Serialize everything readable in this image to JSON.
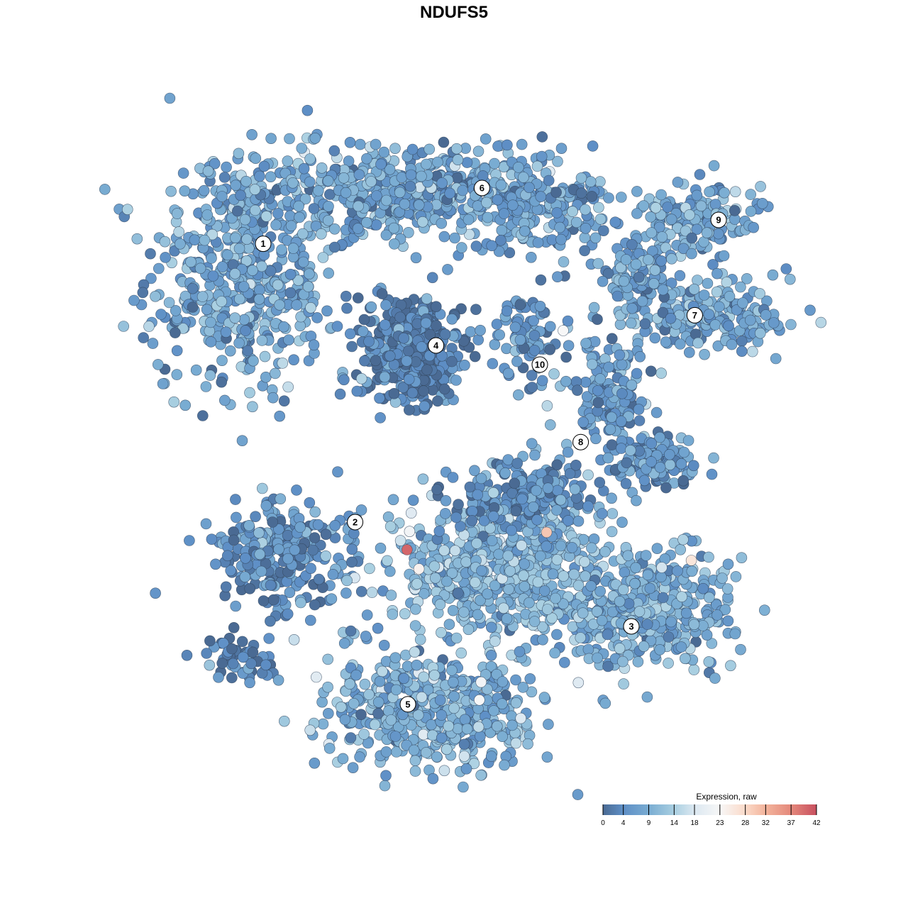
{
  "chart_data": {
    "type": "scatter",
    "title": "NDUFS5",
    "xlabel": "",
    "ylabel": "",
    "axes_visible": false,
    "grid": false,
    "note_points": "dense embedding scatter; cells summarized by cluster blobs (center, spread, count, mean expression)",
    "xlim": [
      -40,
      40
    ],
    "ylim": [
      -40,
      40
    ],
    "clusters": [
      {
        "label": "1",
        "x": -24.5,
        "y": 24.7
      },
      {
        "label": "6",
        "x": 1.2,
        "y": 31.25
      },
      {
        "label": "9",
        "x": 29,
        "y": 27.5
      },
      {
        "label": "7",
        "x": 26.2,
        "y": 16.3
      },
      {
        "label": "4",
        "x": -4.2,
        "y": 12.75
      },
      {
        "label": "10",
        "x": 8,
        "y": 10.5
      },
      {
        "label": "8",
        "x": 12.8,
        "y": 1.4
      },
      {
        "label": "2",
        "x": -13.7,
        "y": -8
      },
      {
        "label": "3",
        "x": 18.75,
        "y": -20.25
      },
      {
        "label": "5",
        "x": -7.5,
        "y": -29.4
      }
    ],
    "blobs": [
      {
        "x": -27,
        "y": 20.8,
        "sx": 8,
        "sy": 10,
        "n": 500,
        "expr": 8
      },
      {
        "x": -8.75,
        "y": 30.8,
        "sx": 13,
        "sy": 4,
        "n": 500,
        "expr": 8
      },
      {
        "x": 7.9,
        "y": 29.2,
        "sx": 6,
        "sy": 4,
        "n": 200,
        "expr": 7
      },
      {
        "x": -7,
        "y": 12.5,
        "sx": 4.5,
        "sy": 4.5,
        "n": 400,
        "expr": 2
      },
      {
        "x": 27,
        "y": 27.5,
        "sx": 5,
        "sy": 3,
        "n": 150,
        "expr": 8
      },
      {
        "x": 28,
        "y": 15.8,
        "sx": 7,
        "sy": 3,
        "n": 200,
        "expr": 8
      },
      {
        "x": 19.6,
        "y": 20.8,
        "sx": 3,
        "sy": 3,
        "n": 100,
        "expr": 7
      },
      {
        "x": 6.25,
        "y": 14.2,
        "sx": 3,
        "sy": 3.5,
        "n": 80,
        "expr": 5
      },
      {
        "x": 16.25,
        "y": 6.7,
        "sx": 3,
        "sy": 5,
        "n": 150,
        "expr": 6
      },
      {
        "x": 22,
        "y": -0.8,
        "sx": 3.5,
        "sy": 2,
        "n": 130,
        "expr": 5
      },
      {
        "x": -22,
        "y": -11.7,
        "sx": 6,
        "sy": 4.5,
        "n": 250,
        "expr": 4
      },
      {
        "x": -27,
        "y": -24,
        "sx": 3,
        "sy": 2,
        "n": 50,
        "expr": 3
      },
      {
        "x": 3,
        "y": -13.3,
        "sx": 9,
        "sy": 6,
        "n": 600,
        "expr": 11
      },
      {
        "x": 6.25,
        "y": -5,
        "sx": 6,
        "sy": 3,
        "n": 200,
        "expr": 5
      },
      {
        "x": 19.6,
        "y": -18.3,
        "sx": 8,
        "sy": 5,
        "n": 400,
        "expr": 9
      },
      {
        "x": -4.6,
        "y": -30,
        "sx": 9,
        "sy": 5,
        "n": 500,
        "expr": 9
      }
    ],
    "high_points": [
      {
        "x": -7.6,
        "y": -11.25,
        "expr": 40
      },
      {
        "x": 8.8,
        "y": -9.2,
        "expr": 30
      },
      {
        "x": 25.8,
        "y": -12.5,
        "expr": 26
      },
      {
        "x": 10.75,
        "y": 14.5,
        "expr": 23
      },
      {
        "x": -7.3,
        "y": -9.1,
        "expr": 22
      },
      {
        "x": -6.2,
        "y": -13.5,
        "expr": 24
      },
      {
        "x": 1.1,
        "y": -26.8,
        "expr": 22
      },
      {
        "x": 0.9,
        "y": -28.9,
        "expr": 23
      }
    ],
    "legend": {
      "title": "Expression, raw",
      "placement": "bottom-right",
      "ticks": [
        "0",
        "4",
        "9",
        "14",
        "18",
        "23",
        "28",
        "32",
        "37",
        "42"
      ],
      "range": [
        0,
        42
      ],
      "colors": [
        {
          "v": 0,
          "c": "#4a6a93"
        },
        {
          "v": 4,
          "c": "#5e8fc6"
        },
        {
          "v": 9,
          "c": "#79acd2"
        },
        {
          "v": 14,
          "c": "#a9cfe1"
        },
        {
          "v": 18,
          "c": "#dce8f1"
        },
        {
          "v": 23,
          "c": "#f7f7f7"
        },
        {
          "v": 28,
          "c": "#fbdac9"
        },
        {
          "v": 32,
          "c": "#f3b49c"
        },
        {
          "v": 37,
          "c": "#e4887b"
        },
        {
          "v": 42,
          "c": "#c8505f"
        }
      ]
    }
  }
}
